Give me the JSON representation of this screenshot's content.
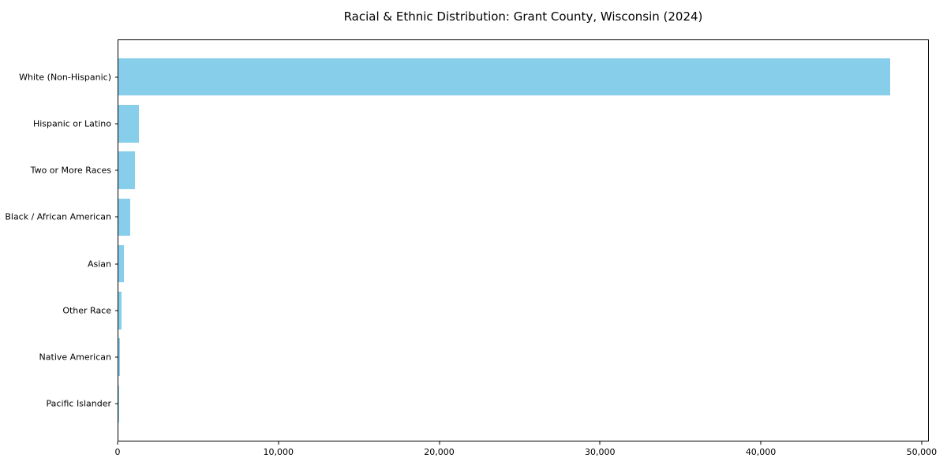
{
  "chart_data": {
    "type": "bar",
    "orientation": "horizontal",
    "title": "Racial & Ethnic Distribution: Grant County, Wisconsin (2024)",
    "categories": [
      "White (Non-Hispanic)",
      "Hispanic or Latino",
      "Two or More Races",
      "Black / African American",
      "Asian",
      "Other Race",
      "Native American",
      "Pacific Islander"
    ],
    "values": [
      48100,
      1300,
      1020,
      760,
      360,
      190,
      100,
      20
    ],
    "bar_color": "#87CEEB",
    "xlabel": "",
    "ylabel": "",
    "xlim": [
      0,
      50450
    ],
    "x_ticks": [
      {
        "value": 0,
        "label": "0"
      },
      {
        "value": 10000,
        "label": "10,000"
      },
      {
        "value": 20000,
        "label": "20,000"
      },
      {
        "value": 30000,
        "label": "30,000"
      },
      {
        "value": 40000,
        "label": "40,000"
      },
      {
        "value": 50000,
        "label": "50,000"
      }
    ],
    "grid": false,
    "legend": null,
    "value_axis": "x",
    "category_axis": "y"
  }
}
